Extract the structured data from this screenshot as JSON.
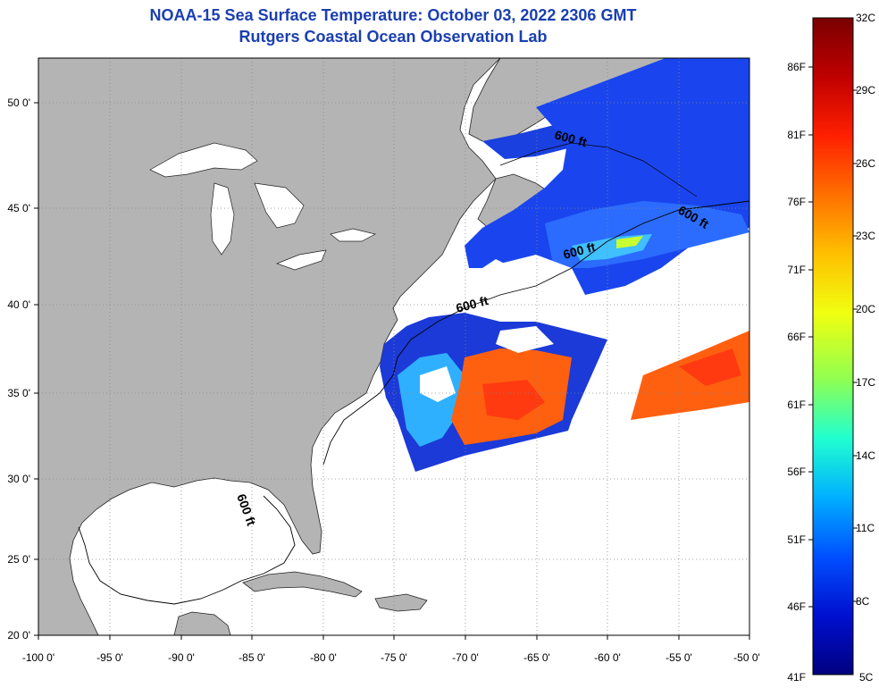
{
  "header": {
    "title": "NOAA-15 Sea Surface Temperature:  October 03, 2022 2306 GMT",
    "subtitle": "Rutgers Coastal Ocean Observation Lab"
  },
  "map": {
    "lon_labels": [
      "-100 0'",
      "-95 0'",
      "-90 0'",
      "-85 0'",
      "-80 0'",
      "-75 0'",
      "-70 0'",
      "-65 0'",
      "-60 0'",
      "-55 0'",
      "-50 0'"
    ],
    "lat_labels": [
      "20 0'",
      "25 0'",
      "30 0'",
      "35 0'",
      "40 0'",
      "45 0'",
      "50 0'"
    ],
    "contour_labels": [
      "600 ft",
      "600 ft",
      "600 ft",
      "600 ft",
      "600 ft"
    ],
    "colors": {
      "land": "#b4b4b4",
      "ocean": "#ffffff",
      "grid": "#888888"
    }
  },
  "colorbar": {
    "celsius_labels": [
      "32C",
      "29C",
      "26C",
      "23C",
      "20C",
      "17C",
      "14C",
      "11C",
      "8C",
      "5C"
    ],
    "fahrenheit_labels": [
      "86F",
      "81F",
      "76F",
      "71F",
      "66F",
      "61F",
      "56F",
      "51F",
      "46F",
      "41F"
    ],
    "stops": [
      "#7a0000",
      "#c00000",
      "#ff2000",
      "#ff7000",
      "#ffc000",
      "#f0ff10",
      "#90ff50",
      "#20ffd0",
      "#00b0ff",
      "#0050ff",
      "#0010d0",
      "#000080"
    ]
  }
}
